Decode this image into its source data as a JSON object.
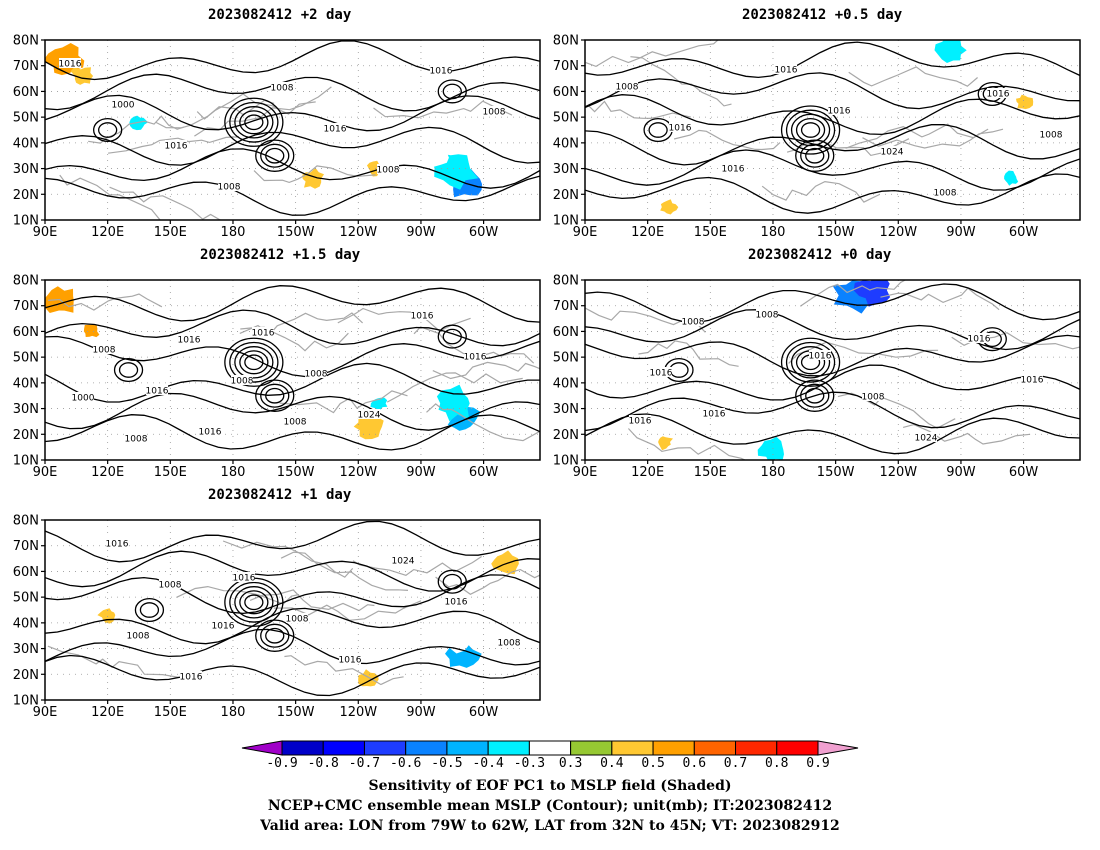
{
  "panels": [
    {
      "id": "p1",
      "title": "2023082412 +2 day",
      "contour_labels": [
        "1016",
        "1000",
        "1016",
        "1008",
        "1008",
        "1016",
        "1008",
        "1016",
        "1008"
      ],
      "shading": [
        {
          "lon": 100,
          "lat": 72,
          "r": 7,
          "v": 0.5
        },
        {
          "lon": 108,
          "lat": 66,
          "r": 4,
          "v": 0.4
        },
        {
          "lon": 292,
          "lat": 24,
          "r": 6,
          "v": -0.6
        },
        {
          "lon": 286,
          "lat": 30,
          "r": 8,
          "v": -0.4
        },
        {
          "lon": 278,
          "lat": 36,
          "r": 5,
          "v": -0.3
        },
        {
          "lon": 135,
          "lat": 48,
          "r": 3,
          "v": -0.4
        },
        {
          "lon": 218,
          "lat": 26,
          "r": 4,
          "v": 0.4
        },
        {
          "lon": 248,
          "lat": 30,
          "r": 3,
          "v": 0.4
        }
      ]
    },
    {
      "id": "p2",
      "title": "2023082412 +0.5 day",
      "contour_labels": [
        "1008",
        "1016",
        "1016",
        "1016",
        "1016",
        "1024",
        "1008",
        "1016",
        "1008"
      ],
      "shading": [
        {
          "lon": 265,
          "lat": 76,
          "r": 6,
          "v": -0.4
        },
        {
          "lon": 294,
          "lat": 26,
          "r": 3,
          "v": -0.4
        },
        {
          "lon": 300,
          "lat": 56,
          "r": 3,
          "v": 0.4
        },
        {
          "lon": 355,
          "lat": 62,
          "r": 3,
          "v": 0.5
        },
        {
          "lon": 240,
          "lat": 42,
          "r": 3,
          "v": -0.3
        },
        {
          "lon": 130,
          "lat": 15,
          "r": 3,
          "v": 0.4
        }
      ]
    },
    {
      "id": "p3",
      "title": "2023082412 +1.5 day",
      "contour_labels": [
        "1008",
        "1016",
        "1016",
        "1016",
        "1008",
        "1024",
        "1016",
        "1016",
        "1000",
        "1008",
        "1016",
        "1008",
        "1008"
      ],
      "shading": [
        {
          "lon": 98,
          "lat": 72,
          "r": 6,
          "v": 0.5
        },
        {
          "lon": 112,
          "lat": 60,
          "r": 3,
          "v": 0.5
        },
        {
          "lon": 290,
          "lat": 26,
          "r": 6,
          "v": -0.5
        },
        {
          "lon": 286,
          "lat": 32,
          "r": 7,
          "v": -0.4
        },
        {
          "lon": 245,
          "lat": 23,
          "r": 5,
          "v": 0.4
        },
        {
          "lon": 250,
          "lat": 32,
          "r": 3,
          "v": -0.4
        },
        {
          "lon": 180,
          "lat": 38,
          "r": 3,
          "v": -0.3
        },
        {
          "lon": 135,
          "lat": 56,
          "r": 3,
          "v": -0.3
        }
      ]
    },
    {
      "id": "p4",
      "title": "2023082412 +0 day",
      "contour_labels": [
        "1016",
        "1016",
        "1008",
        "1016",
        "1008",
        "1024",
        "1016",
        "1016",
        "1016",
        "1008"
      ],
      "shading": [
        {
          "lon": 220,
          "lat": 74,
          "r": 8,
          "v": -0.6
        },
        {
          "lon": 228,
          "lat": 76,
          "r": 6,
          "v": -0.7
        },
        {
          "lon": 205,
          "lat": 16,
          "r": 8,
          "v": -0.3
        },
        {
          "lon": 180,
          "lat": 14,
          "r": 5,
          "v": -0.4
        },
        {
          "lon": 215,
          "lat": 32,
          "r": 4,
          "v": -0.3
        },
        {
          "lon": 128,
          "lat": 17,
          "r": 3,
          "v": 0.4
        }
      ]
    },
    {
      "id": "p5",
      "title": "2023082412 +1 day",
      "contour_labels": [
        "1008",
        "1016",
        "1016",
        "1008",
        "1016",
        "1024",
        "1016",
        "1008",
        "1016",
        "1008",
        "1016"
      ],
      "shading": [
        {
          "lon": 290,
          "lat": 28,
          "r": 6,
          "v": -0.5
        },
        {
          "lon": 285,
          "lat": 34,
          "r": 6,
          "v": -0.3
        },
        {
          "lon": 310,
          "lat": 63,
          "r": 5,
          "v": 0.4
        },
        {
          "lon": 245,
          "lat": 18,
          "r": 4,
          "v": 0.4
        },
        {
          "lon": 120,
          "lat": 43,
          "r": 3,
          "v": 0.4
        },
        {
          "lon": 135,
          "lat": 74,
          "r": 4,
          "v": -0.3
        },
        {
          "lon": 250,
          "lat": 55,
          "r": 3,
          "v": -0.3
        }
      ]
    }
  ],
  "axes": {
    "lat_ticks": [
      "10N",
      "20N",
      "30N",
      "40N",
      "50N",
      "60N",
      "70N",
      "80N"
    ],
    "lon_ticks": [
      "90E",
      "120E",
      "150E",
      "180",
      "150W",
      "120W",
      "90W",
      "60W"
    ],
    "lat_values": [
      10,
      20,
      30,
      40,
      50,
      60,
      70,
      80
    ],
    "lon_values": [
      90,
      120,
      150,
      180,
      210,
      240,
      270,
      300
    ],
    "lat_range": [
      10,
      80
    ],
    "lon_range": [
      90,
      327
    ]
  },
  "colorbar": {
    "labels": [
      "-0.9",
      "-0.8",
      "-0.7",
      "-0.6",
      "-0.5",
      "-0.4",
      "-0.3",
      "0.3",
      "0.4",
      "0.5",
      "0.6",
      "0.7",
      "0.8",
      "0.9"
    ],
    "colors": [
      "#a000c8",
      "#0000c8",
      "#0000ff",
      "#1e3cff",
      "#0a82ff",
      "#00b4ff",
      "#00f0ff",
      "#ffffff",
      "#96c832",
      "#ffc832",
      "#ffa000",
      "#ff6400",
      "#ff2800",
      "#ff0000",
      "#f0a0d0"
    ]
  },
  "caption": {
    "line1": "Sensitivity of EOF PC1 to MSLP field (Shaded)",
    "line2": "NCEP+CMC ensemble mean MSLP (Contour); unit(mb); IT:2023082412",
    "line3": "Valid area: LON from 79W to 62W, LAT from 32N to 45N; VT: 2023082912"
  }
}
